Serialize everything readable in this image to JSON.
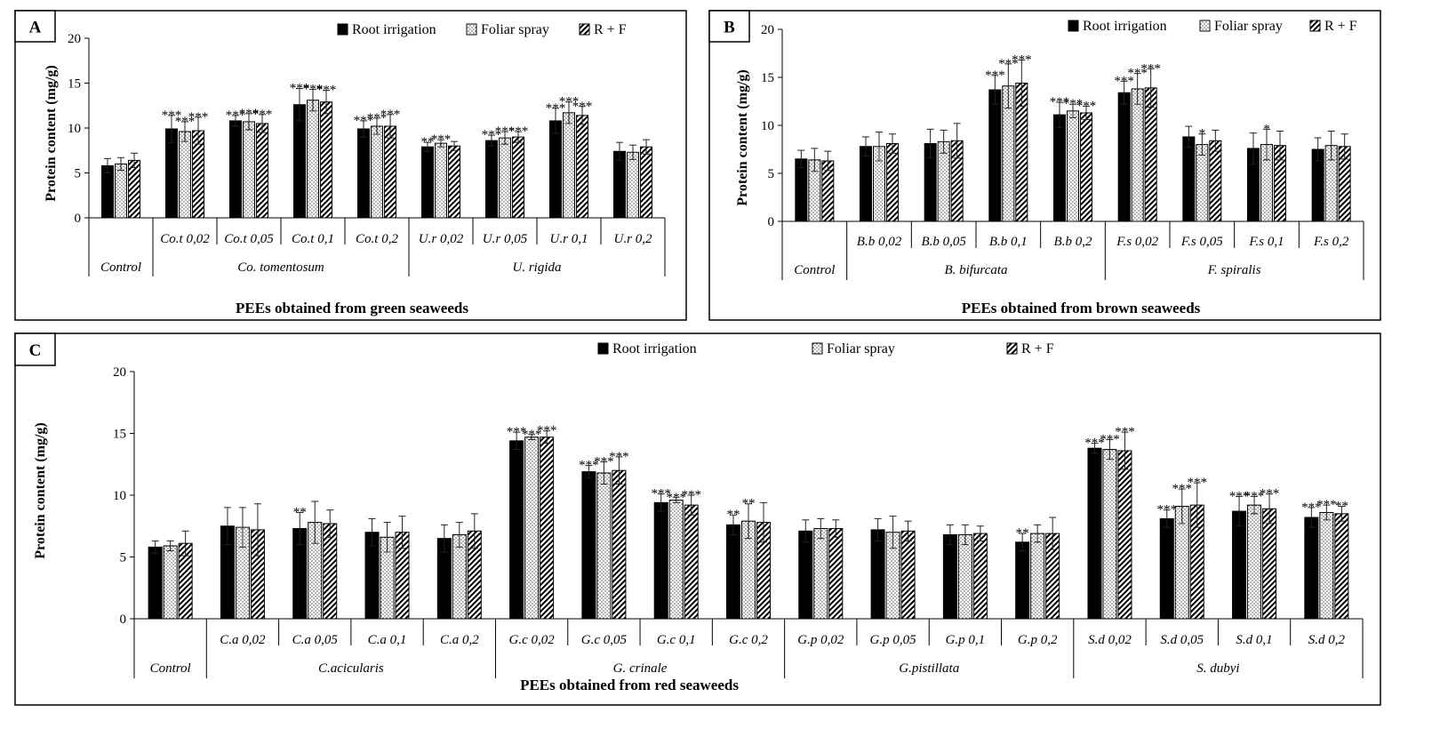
{
  "legend": {
    "series": [
      "Root irrigation",
      "Foliar spray",
      "R + F"
    ]
  },
  "panels": [
    {
      "id": "A",
      "xlabel": "PEEs obtained from green seaweeds",
      "ylabel": "Protein content  (mg/g)"
    },
    {
      "id": "B",
      "xlabel": "PEEs obtained from brown seaweeds",
      "ylabel": "Protein content  (mg/g)"
    },
    {
      "id": "C",
      "xlabel": "PEEs obtained from red seaweeds",
      "ylabel": "Protein content  (mg/g)"
    }
  ],
  "chart_data": [
    {
      "type": "bar",
      "panel": "A",
      "xlabel": "PEEs obtained from green seaweeds",
      "ylabel": "Protein content  (mg/g)",
      "ylim": [
        0,
        20
      ],
      "yticks": [
        0,
        5,
        10,
        15,
        20
      ],
      "legend_position": "top-right",
      "categories": [
        "",
        "Co.t 0,02",
        "Co.t 0,05",
        "Co.t 0,1",
        "Co.t 0,2",
        "U.r 0,02",
        "U.r 0,05",
        "U.r 0,1",
        "U.r 0,2"
      ],
      "groups": [
        {
          "label": "Control",
          "from": 0,
          "to": 0
        },
        {
          "label": "Co. tomentosum",
          "from": 1,
          "to": 4
        },
        {
          "label": "U. rigida",
          "from": 5,
          "to": 8
        }
      ],
      "series": [
        {
          "name": "Root irrigation",
          "values": [
            5.8,
            9.9,
            10.8,
            12.6,
            9.9,
            7.9,
            8.6,
            10.8,
            7.4
          ],
          "errors": [
            0.8,
            1.5,
            0.6,
            1.8,
            0.9,
            0.5,
            0.6,
            1.4,
            1.0
          ],
          "sig": [
            "",
            "***",
            "***",
            "***",
            "***",
            "**",
            "***",
            "***",
            ""
          ]
        },
        {
          "name": "Foliar spray",
          "values": [
            6.0,
            9.6,
            10.7,
            13.1,
            10.2,
            8.3,
            8.9,
            11.7,
            7.3
          ],
          "errors": [
            0.7,
            1.1,
            0.9,
            1.2,
            0.9,
            0.4,
            0.7,
            1.2,
            0.8
          ],
          "sig": [
            "",
            "***",
            "***",
            "***",
            "***",
            "***",
            "***",
            "***",
            ""
          ]
        },
        {
          "name": "R + F",
          "values": [
            6.4,
            9.7,
            10.5,
            12.9,
            10.2,
            8.0,
            9.0,
            11.4,
            7.9
          ],
          "errors": [
            0.8,
            1.5,
            1.0,
            1.3,
            1.3,
            0.5,
            0.6,
            1.0,
            0.8
          ],
          "sig": [
            "",
            "***",
            "***",
            "***",
            "***",
            "",
            "***",
            "***",
            ""
          ]
        }
      ]
    },
    {
      "type": "bar",
      "panel": "B",
      "xlabel": "PEEs obtained from brown seaweeds",
      "ylabel": "Protein content  (mg/g)",
      "ylim": [
        0,
        20
      ],
      "yticks": [
        0,
        5,
        10,
        15,
        20
      ],
      "legend_position": "top-right",
      "categories": [
        "",
        "B.b 0,02",
        "B.b 0,05",
        "B.b 0,1",
        "B.b 0,2",
        "F.s 0,02",
        "F.s 0,05",
        "F.s 0,1",
        "F.s 0,2"
      ],
      "groups": [
        {
          "label": "Control",
          "from": 0,
          "to": 0
        },
        {
          "label": "B. bifurcata",
          "from": 1,
          "to": 4
        },
        {
          "label": "F. spiralis",
          "from": 5,
          "to": 8
        }
      ],
      "series": [
        {
          "name": "Root irrigation",
          "values": [
            6.5,
            7.8,
            8.1,
            13.7,
            11.1,
            13.4,
            8.8,
            7.6,
            7.5
          ],
          "errors": [
            0.9,
            1.0,
            1.5,
            1.5,
            1.3,
            1.2,
            1.1,
            1.6,
            1.2
          ],
          "sig": [
            "",
            "",
            "",
            "***",
            "***",
            "***",
            "",
            "",
            ""
          ]
        },
        {
          "name": "Foliar spray",
          "values": [
            6.4,
            7.8,
            8.3,
            14.1,
            11.5,
            13.8,
            8.0,
            8.0,
            7.9
          ],
          "errors": [
            1.2,
            1.5,
            1.2,
            2.3,
            0.7,
            1.6,
            1.1,
            1.6,
            1.5
          ],
          "sig": [
            "",
            "",
            "",
            "***",
            "***",
            "***",
            "*",
            "*",
            ""
          ]
        },
        {
          "name": "R + F",
          "values": [
            6.3,
            8.1,
            8.4,
            14.4,
            11.3,
            13.9,
            8.4,
            7.9,
            7.8
          ],
          "errors": [
            1.0,
            1.0,
            1.8,
            2.4,
            0.7,
            2.0,
            1.1,
            1.5,
            1.3
          ],
          "sig": [
            "",
            "",
            "",
            "***",
            "***",
            "***",
            "",
            "",
            ""
          ]
        }
      ]
    },
    {
      "type": "bar",
      "panel": "C",
      "xlabel": "PEEs obtained from red seaweeds",
      "ylabel": "Protein content  (mg/g)",
      "ylim": [
        0,
        20
      ],
      "yticks": [
        0,
        5,
        10,
        15,
        20
      ],
      "legend_position": "top-center",
      "categories": [
        "",
        "C.a 0,02",
        "C.a 0,05",
        "C.a 0,1",
        "C.a  0,2",
        "G.c 0,02",
        "G.c 0,05",
        "G.c 0,1",
        "G.c  0,2",
        "G.p 0,02",
        "G.p 0,05",
        "G.p 0,1",
        "G.p 0,2",
        "S.d  0,02",
        "S.d  0,05",
        "S.d  0,1",
        "S.d 0,2"
      ],
      "groups": [
        {
          "label": "Control",
          "from": 0,
          "to": 0
        },
        {
          "label": "C.acicularis",
          "from": 1,
          "to": 4
        },
        {
          "label": "G. crinale",
          "from": 5,
          "to": 8
        },
        {
          "label": "G.pistillata",
          "from": 9,
          "to": 12
        },
        {
          "label": "S. dubyi",
          "from": 13,
          "to": 16
        }
      ],
      "series": [
        {
          "name": "Root irrigation",
          "values": [
            5.8,
            7.5,
            7.3,
            7.0,
            6.5,
            14.4,
            11.9,
            9.4,
            7.6,
            7.1,
            7.2,
            6.8,
            6.2,
            13.8,
            8.1,
            8.7,
            8.2
          ],
          "errors": [
            0.5,
            1.5,
            1.3,
            1.1,
            1.1,
            0.7,
            0.5,
            0.7,
            0.8,
            0.9,
            0.9,
            0.8,
            0.7,
            0.4,
            0.7,
            1.2,
            0.8
          ],
          "sig": [
            "",
            "",
            "**",
            "",
            "",
            "***",
            "***",
            "***",
            "**",
            "",
            "",
            "",
            "**",
            "***",
            "***",
            "***",
            "***"
          ]
        },
        {
          "name": "Foliar spray",
          "values": [
            5.9,
            7.4,
            7.8,
            6.6,
            6.8,
            14.7,
            11.8,
            9.6,
            7.9,
            7.3,
            7.0,
            6.8,
            6.9,
            13.7,
            9.1,
            9.2,
            8.6
          ],
          "errors": [
            0.4,
            1.6,
            1.7,
            1.2,
            1.0,
            0.2,
            0.9,
            0.2,
            1.4,
            0.8,
            1.3,
            0.8,
            0.7,
            0.8,
            1.4,
            0.7,
            0.6
          ],
          "sig": [
            "",
            "",
            "",
            "",
            "",
            "***",
            "***",
            "***",
            "**",
            "",
            "",
            "",
            "",
            "***",
            "***",
            "***",
            "***"
          ]
        },
        {
          "name": "R + F",
          "values": [
            6.1,
            7.2,
            7.7,
            7.0,
            7.1,
            14.7,
            12.0,
            9.2,
            7.8,
            7.3,
            7.1,
            6.9,
            6.9,
            13.6,
            9.2,
            8.9,
            8.5
          ],
          "errors": [
            1.0,
            2.1,
            1.1,
            1.3,
            1.4,
            0.5,
            1.1,
            0.8,
            1.6,
            0.7,
            0.8,
            0.6,
            1.3,
            1.5,
            1.8,
            1.2,
            0.6
          ],
          "sig": [
            "",
            "",
            "",
            "",
            "",
            "***",
            "***",
            "***",
            "",
            "",
            "",
            "",
            "",
            "***",
            "***",
            "***",
            "**"
          ]
        }
      ]
    }
  ]
}
